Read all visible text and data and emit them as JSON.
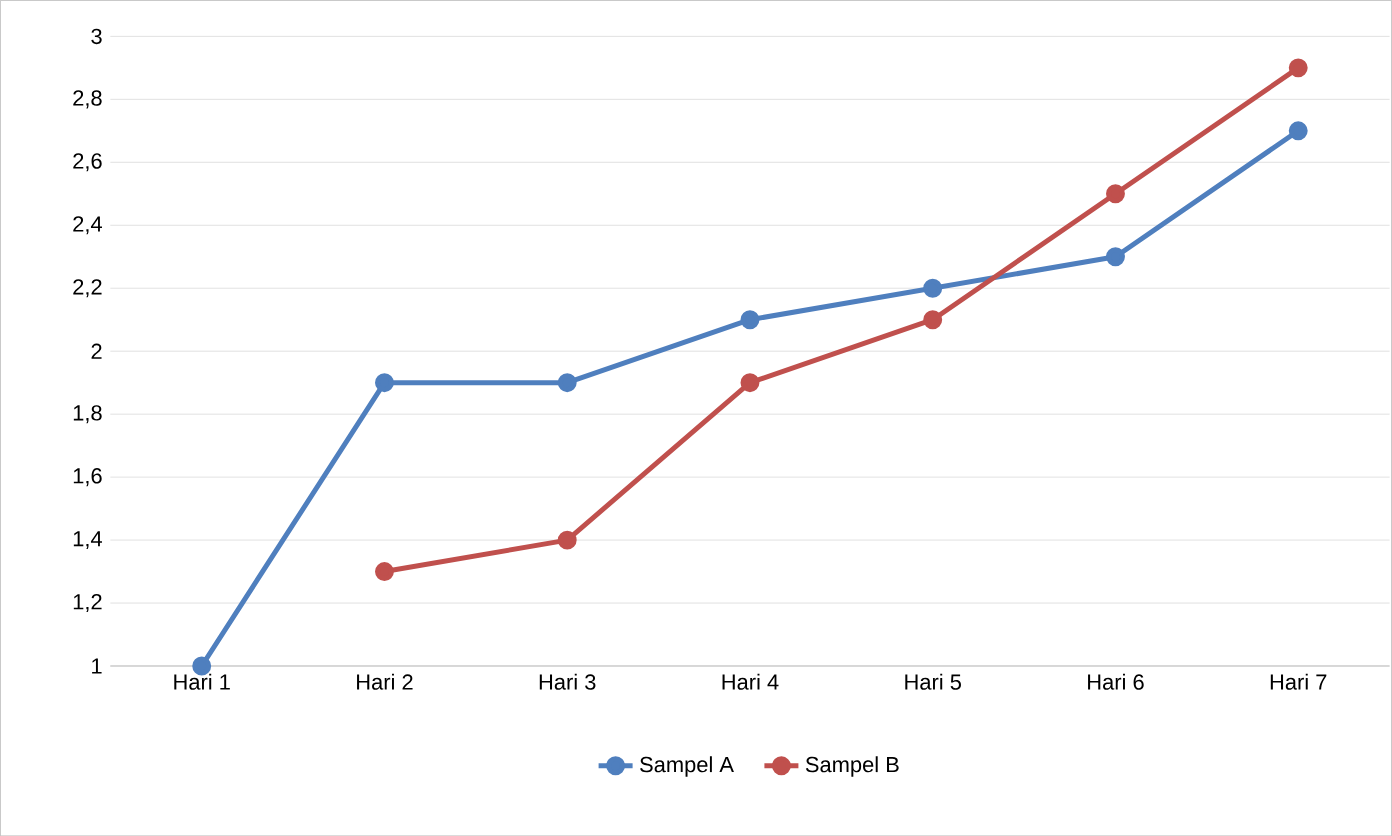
{
  "chart_data": {
    "type": "line",
    "categories": [
      "Hari 1",
      "Hari 2",
      "Hari 3",
      "Hari 4",
      "Hari 5",
      "Hari 6",
      "Hari 7"
    ],
    "series": [
      {
        "name": "Sampel A",
        "color": "#4f7fbe",
        "values": [
          1,
          1.9,
          1.9,
          2.1,
          2.2,
          2.3,
          2.7
        ]
      },
      {
        "name": "Sampel B",
        "color": "#c0504d",
        "values": [
          null,
          1.3,
          1.4,
          1.9,
          2.1,
          2.5,
          2.9
        ]
      }
    ],
    "ylim": [
      1,
      3
    ],
    "yticks": [
      1,
      {
        "value": 1.2,
        "label": "1,2"
      },
      {
        "value": 1.4,
        "label": "1,4"
      },
      {
        "value": 1.6,
        "label": "1,6"
      },
      {
        "value": 1.8,
        "label": "1,8"
      },
      2,
      {
        "value": 2.2,
        "label": "2,2"
      },
      {
        "value": 2.4,
        "label": "2,4"
      },
      {
        "value": 2.6,
        "label": "2,6"
      },
      {
        "value": 2.8,
        "label": "2,8"
      },
      3
    ],
    "grid": "y",
    "legend": "bottom",
    "marker": "circle",
    "line_style": "solid"
  }
}
